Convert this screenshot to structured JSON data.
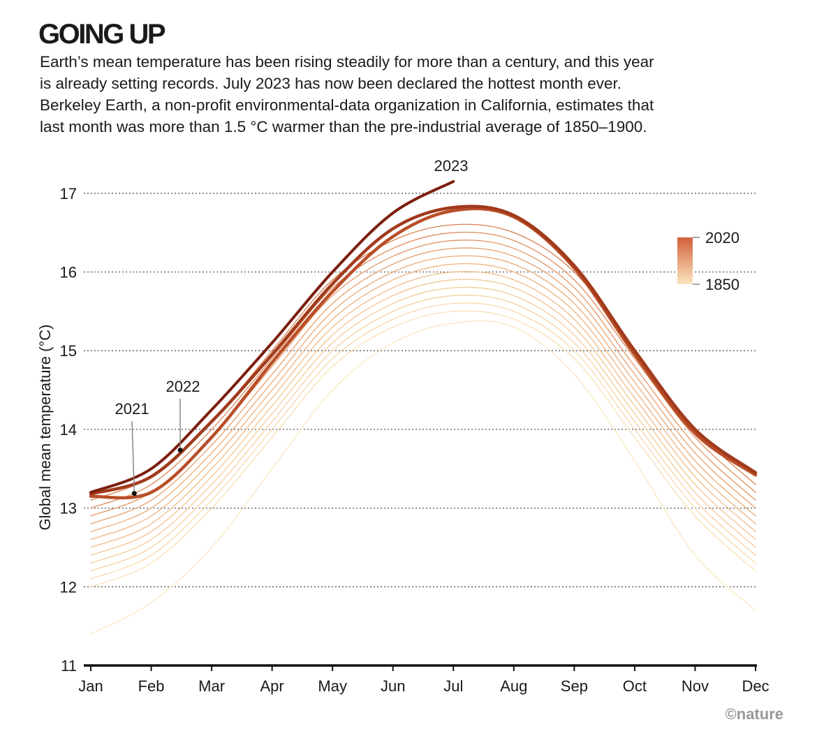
{
  "chart_data": {
    "type": "line",
    "title": "GOING UP",
    "subtitle": [
      "Earth’s mean temperature has been rising steadily for more than a century, and this year",
      "is already setting records. July 2023 has now been declared the hottest month ever.",
      "Berkeley Earth, a non-profit environmental-data organization in California, estimates that",
      "last month was more than 1.5 °C warmer than the pre-industrial average of 1850–1900."
    ],
    "y_label": "Global mean temperature (°C)",
    "credit": "©nature",
    "categories": [
      "Jan",
      "Feb",
      "Mar",
      "Apr",
      "May",
      "Jun",
      "Jul",
      "Aug",
      "Sep",
      "Oct",
      "Nov",
      "Dec"
    ],
    "ylim": [
      11,
      17.3
    ],
    "yticks": [
      11,
      12,
      13,
      14,
      15,
      16,
      17
    ],
    "grid": true,
    "colorbar": {
      "ticks": [
        2020,
        1850
      ],
      "colors": [
        "#d2603a",
        "#fbe6bf"
      ]
    },
    "background_series": [
      {
        "color": "#fbe6c2",
        "values": [
          11.4,
          11.8,
          12.5,
          13.5,
          14.5,
          15.1,
          15.35,
          15.3,
          14.7,
          13.6,
          12.4,
          11.7
        ]
      },
      {
        "color": "#f9dfb6",
        "values": [
          12.0,
          12.3,
          13.0,
          13.9,
          14.8,
          15.3,
          15.5,
          15.4,
          14.9,
          13.9,
          12.9,
          12.2
        ]
      },
      {
        "color": "#f8d9ac",
        "values": [
          12.1,
          12.4,
          13.1,
          14.0,
          14.9,
          15.4,
          15.6,
          15.5,
          15.0,
          14.0,
          13.0,
          12.3
        ]
      },
      {
        "color": "#f6d2a2",
        "values": [
          12.2,
          12.5,
          13.2,
          14.1,
          15.0,
          15.5,
          15.7,
          15.6,
          15.1,
          14.1,
          13.1,
          12.4
        ]
      },
      {
        "color": "#f4cb98",
        "values": [
          12.3,
          12.6,
          13.3,
          14.2,
          15.1,
          15.6,
          15.8,
          15.7,
          15.2,
          14.2,
          13.2,
          12.5
        ]
      },
      {
        "color": "#f2c38f",
        "values": [
          12.4,
          12.7,
          13.4,
          14.3,
          15.2,
          15.7,
          15.9,
          15.8,
          15.3,
          14.3,
          13.3,
          12.6
        ]
      },
      {
        "color": "#f0bb86",
        "values": [
          12.5,
          12.8,
          13.5,
          14.4,
          15.3,
          15.8,
          16.0,
          15.9,
          15.4,
          14.4,
          13.4,
          12.7
        ]
      },
      {
        "color": "#eeb37d",
        "values": [
          12.6,
          12.9,
          13.6,
          14.5,
          15.4,
          15.9,
          16.1,
          16.0,
          15.5,
          14.5,
          13.5,
          12.8
        ]
      },
      {
        "color": "#ebaa74",
        "values": [
          12.7,
          13.0,
          13.7,
          14.6,
          15.5,
          16.0,
          16.2,
          16.1,
          15.6,
          14.6,
          13.6,
          12.9
        ]
      },
      {
        "color": "#e8a06b",
        "values": [
          12.8,
          13.1,
          13.8,
          14.7,
          15.6,
          16.1,
          16.3,
          16.2,
          15.7,
          14.7,
          13.7,
          13.0
        ]
      },
      {
        "color": "#e49562",
        "values": [
          12.9,
          13.2,
          13.9,
          14.8,
          15.7,
          16.2,
          16.4,
          16.3,
          15.8,
          14.8,
          13.8,
          13.1
        ]
      },
      {
        "color": "#df8a58",
        "values": [
          13.0,
          13.3,
          14.0,
          14.9,
          15.8,
          16.3,
          16.5,
          16.4,
          15.9,
          14.9,
          13.9,
          13.2
        ]
      },
      {
        "color": "#d97e4d",
        "values": [
          13.1,
          13.4,
          14.1,
          15.0,
          15.9,
          16.4,
          16.6,
          16.5,
          16.0,
          15.0,
          14.0,
          13.3
        ]
      }
    ],
    "series": [
      {
        "name": "2021",
        "color": "#b84e28",
        "values": [
          13.15,
          13.2,
          13.9,
          14.85,
          15.75,
          16.45,
          16.78,
          16.7,
          16.05,
          14.95,
          13.95,
          13.42
        ]
      },
      {
        "name": "2022",
        "color": "#a13a1c",
        "values": [
          13.18,
          13.4,
          14.1,
          14.95,
          15.85,
          16.55,
          16.82,
          16.72,
          16.08,
          15.0,
          14.0,
          13.45
        ]
      },
      {
        "name": "2023",
        "color": "#7c1f0f",
        "values": [
          13.2,
          13.5,
          14.25,
          15.1,
          16.0,
          16.75,
          17.15,
          null,
          null,
          null,
          null,
          null
        ]
      }
    ]
  }
}
